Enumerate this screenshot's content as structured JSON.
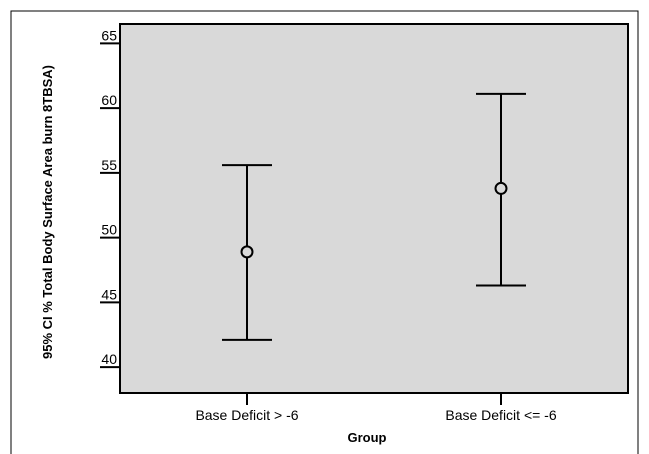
{
  "chart_data": {
    "type": "errorbar",
    "xlabel": "Group",
    "ylabel": "95% CI % Total Body Surface Area burn 8TBSA)",
    "ylim": [
      38,
      66.5
    ],
    "yticks": [
      "40",
      "45",
      "50",
      "55",
      "60",
      "65"
    ],
    "grid": false,
    "categories": [
      "Base Deficit > -6",
      "Base Deficit <= -6"
    ],
    "points": [
      {
        "category": "Base Deficit > -6",
        "mean": 48.9,
        "lower": 42.1,
        "upper": 55.6
      },
      {
        "category": "Base Deficit <= -6",
        "mean": 53.8,
        "lower": 46.3,
        "upper": 61.1
      }
    ],
    "colors": {
      "plot_background": "#d9d9d9",
      "line": "#000000"
    }
  }
}
